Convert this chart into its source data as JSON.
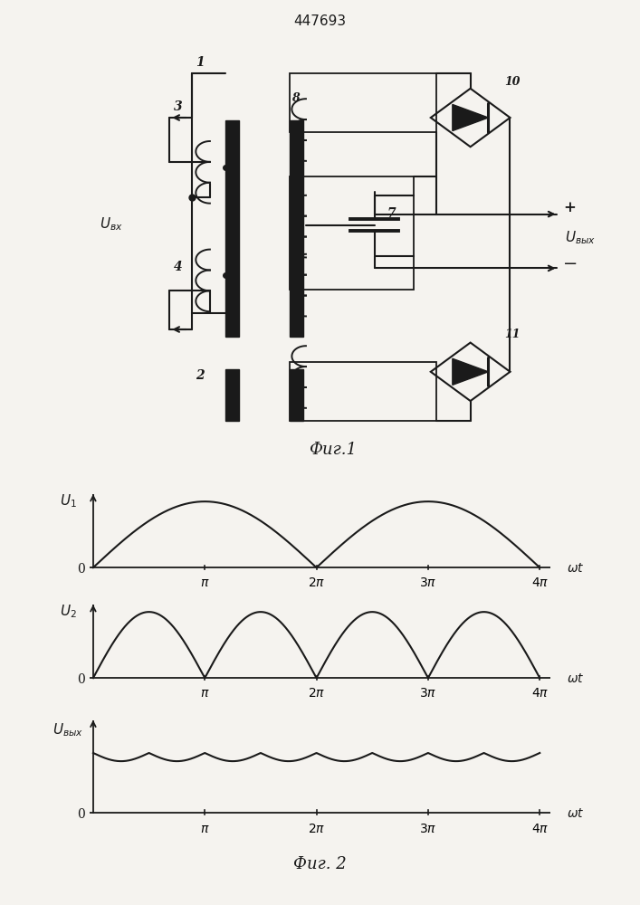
{
  "title_number": "447693",
  "fig1_label": "Фиг.1",
  "fig2_label": "Фиг. 2",
  "bg_color": "#f5f3ef",
  "line_color": "#1a1a1a",
  "graph1_ylabel": "U₁",
  "graph2_ylabel": "U₂",
  "graph3_ylabel": "Uвых",
  "u_vx_label": "Uвх",
  "u_vyx_label": "Uвых"
}
